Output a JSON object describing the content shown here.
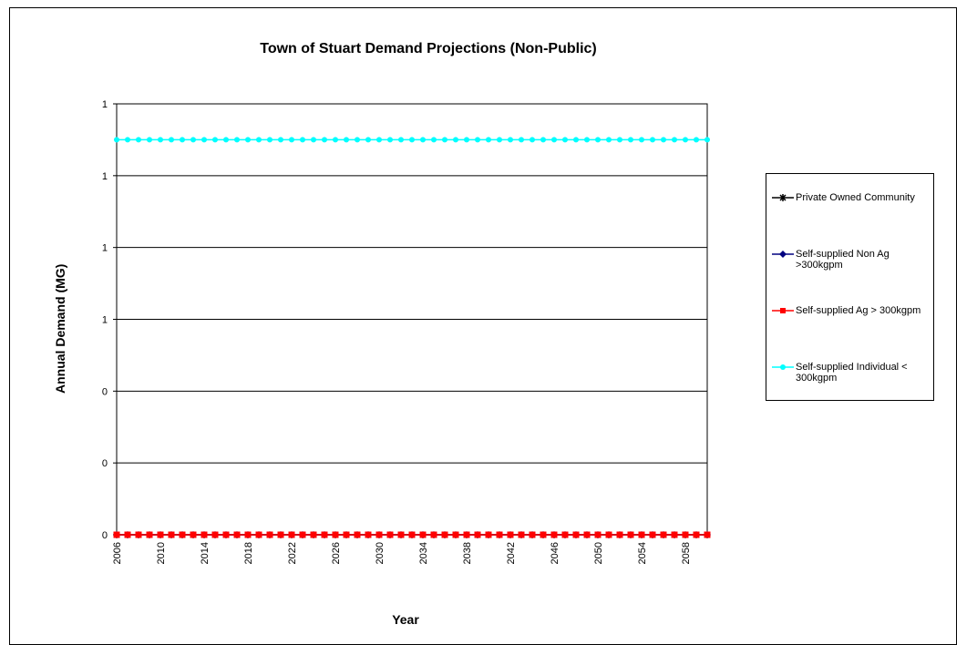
{
  "chart_data": {
    "type": "line",
    "title": "Town of Stuart Demand Projections (Non-Public)",
    "xlabel": "Year",
    "ylabel": "Annual Demand (MG)",
    "x": [
      2006,
      2007,
      2008,
      2009,
      2010,
      2011,
      2012,
      2013,
      2014,
      2015,
      2016,
      2017,
      2018,
      2019,
      2020,
      2021,
      2022,
      2023,
      2024,
      2025,
      2026,
      2027,
      2028,
      2029,
      2030,
      2031,
      2032,
      2033,
      2034,
      2035,
      2036,
      2037,
      2038,
      2039,
      2040,
      2041,
      2042,
      2043,
      2044,
      2045,
      2046,
      2047,
      2048,
      2049,
      2050,
      2051,
      2052,
      2053,
      2054,
      2055,
      2056,
      2057,
      2058,
      2059,
      2060
    ],
    "x_tick_labels": [
      "2006",
      "2010",
      "2014",
      "2018",
      "2022",
      "2026",
      "2030",
      "2034",
      "2038",
      "2042",
      "2046",
      "2050",
      "2054",
      "2058"
    ],
    "y_tick_labels": [
      "1",
      "1",
      "1",
      "1",
      "0",
      "0",
      "0"
    ],
    "ylim": [
      0,
      1.2
    ],
    "grid": true,
    "legend_position": "right",
    "series": [
      {
        "name": "Private Owned Community",
        "color": "#000000",
        "marker": "star",
        "constant_value": 0
      },
      {
        "name": "Self-supplied Non Ag >300kgpm",
        "color": "#000080",
        "marker": "diamond",
        "constant_value": 0
      },
      {
        "name": "Self-supplied Ag > 300kgpm",
        "color": "#ff0000",
        "marker": "square",
        "constant_value": 0
      },
      {
        "name": "Self-supplied Individual < 300kgpm",
        "color": "#00ffff",
        "marker": "circle",
        "constant_value": 1.1
      }
    ]
  }
}
